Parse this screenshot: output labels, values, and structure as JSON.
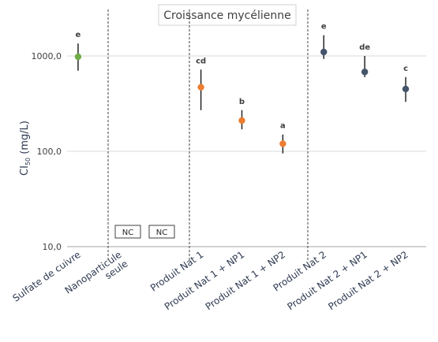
{
  "chart_data": {
    "type": "scatter",
    "title": "Croissance mycélienne",
    "ylabel_main": "CI",
    "ylabel_sub": "50",
    "ylabel_rest": " (mg/L)",
    "yscale": "log",
    "ylim": [
      10,
      2000
    ],
    "yticks": [
      10,
      100,
      1000
    ],
    "ytick_labels": [
      "10,0",
      "100,0",
      "1000,0"
    ],
    "grid": true,
    "categories": [
      "Sulfate de cuivre",
      "Nanoparticule seule",
      "",
      "Produit Nat 1",
      "Produit Nat 1 + NP1",
      "Produit Nat 1 + NP2",
      "Produit Nat 2",
      "Produit Nat 2 + NP1",
      "Produit Nat 2 + NP2"
    ],
    "points": [
      {
        "category": "Sulfate de cuivre",
        "value": 980,
        "err_low": 700,
        "err_high": 1350,
        "letter": "e",
        "color": "#70ad47"
      },
      {
        "category": "Produit Nat 1",
        "value": 470,
        "err_low": 270,
        "err_high": 720,
        "letter": "cd",
        "color": "#ed7d31"
      },
      {
        "category": "Produit Nat 1 + NP1",
        "value": 210,
        "err_low": 170,
        "err_high": 270,
        "letter": "b",
        "color": "#ed7d31"
      },
      {
        "category": "Produit Nat 1 + NP2",
        "value": 120,
        "err_low": 95,
        "err_high": 150,
        "letter": "a",
        "color": "#ed7d31"
      },
      {
        "category": "Produit Nat 2",
        "value": 1100,
        "err_low": 930,
        "err_high": 1650,
        "letter": "e",
        "color": "#44546a"
      },
      {
        "category": "Produit Nat 2 + NP1",
        "value": 680,
        "err_low": 600,
        "err_high": 1000,
        "letter": "de",
        "color": "#44546a"
      },
      {
        "category": "Produit Nat 2 + NP2",
        "value": 450,
        "err_low": 330,
        "err_high": 600,
        "letter": "c",
        "color": "#44546a"
      }
    ],
    "nc_labels": [
      "NC",
      "NC"
    ]
  }
}
